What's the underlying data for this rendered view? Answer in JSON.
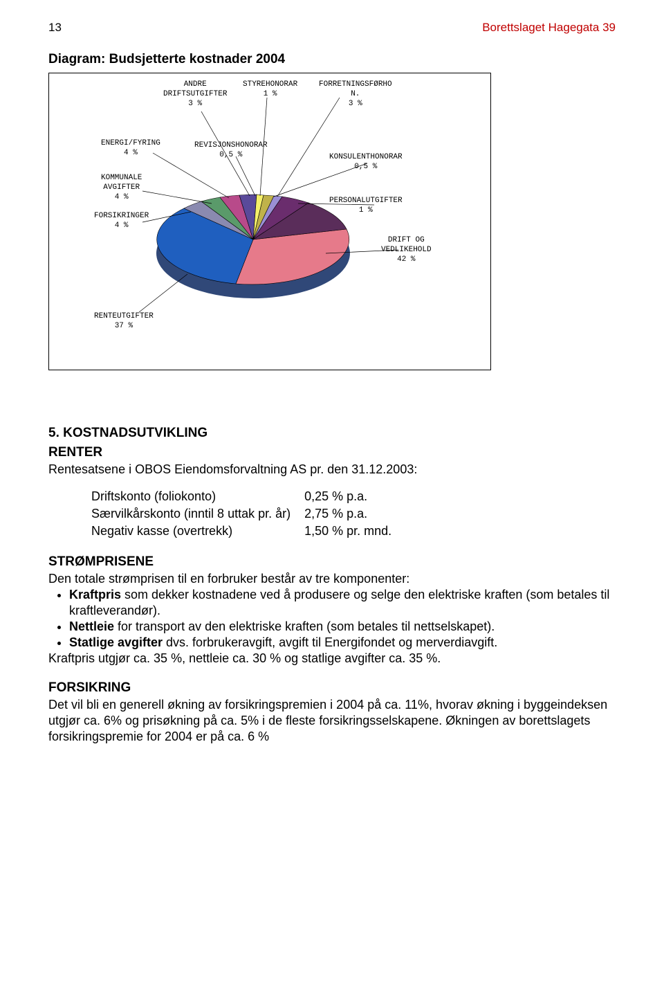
{
  "header": {
    "page_number": "13",
    "doc_title": "Borettslaget Hagegata 39",
    "title_color": "#c00000"
  },
  "diagram": {
    "title": "Diagram: Budsjetterte kostnader 2004",
    "labels": {
      "andre": "ANDRE\nDRIFTSUTGIFTER\n3 %",
      "styre": "STYREHONORAR\n1 %",
      "forretn": "FORRETNINGSFØRHO\nN.\n3 %",
      "energi": "ENERGI/FYRING\n4 %",
      "revisjon": "REVISJONSHONORAR\n0,5 %",
      "konsulent": "KONSULENTHONORAR\n0,5 %",
      "kommunale": "KOMMUNALE\nAVGIFTER\n4 %",
      "personal": "PERSONALUTGIFTER\n1 %",
      "forsikringer": "FORSIKRINGER\n4 %",
      "drift": "DRIFT OG\nVEDLIKEHOLD\n42 %",
      "rente": "RENTEUTGIFTER\n37 %"
    },
    "colors": {
      "rente": "#1f5fbf",
      "drift": "#e67a8a",
      "forretn": "#6a2d6d",
      "styre": "#c0b24a",
      "revisjon": "#f5f06a",
      "konsulent": "#9a8fd4",
      "personal": "#5a2d5a",
      "energi": "#b84a8a",
      "kommunale": "#5a9a6a",
      "forsikringer": "#8a8ab0",
      "andre": "#5a4a9a",
      "side": "#304878",
      "border": "#000000"
    }
  },
  "section5": {
    "heading": "5. KOSTNADSUTVIKLING",
    "renter_h": "RENTER",
    "renter_intro": "Rentesatsene i OBOS Eiendomsforvaltning AS pr. den 31.12.2003:",
    "rates": [
      [
        "Driftskonto (foliokonto)",
        "0,25 % p.a."
      ],
      [
        "Særvilkårskonto (inntil 8 uttak pr. år)",
        "2,75 % p.a."
      ],
      [
        "Negativ kasse (overtrekk)",
        "1,50 % pr. mnd."
      ]
    ],
    "strom_h": "STRØMPRISENE",
    "strom_intro": "Den totale strømprisen til en forbruker består av tre komponenter:",
    "strom_bullets": [
      "<b>Kraftpris</b> som dekker kostnadene ved å produsere og selge den elektriske kraften (som betales til kraftleverandør).",
      "<b>Nettleie</b> for transport av den elektriske kraften (som betales til nettselskapet).",
      "<b>Statlige avgifter</b> dvs. forbrukeravgift, avgift til Energifondet og merverdiavgift."
    ],
    "strom_tail": "Kraftpris utgjør ca. 35 %, nettleie ca. 30 % og statlige avgifter ca. 35 %.",
    "forsikring_h": "FORSIKRING",
    "forsikring_body": "Det vil bli en generell økning av forsikringspremien i 2004 på ca. 11%, hvorav økning i byggeindeksen utgjør ca. 6% og prisøkning på ca. 5% i de fleste forsikringsselskapene. Økningen av borettslagets forsikringspremie for 2004 er på ca. 6 %"
  }
}
